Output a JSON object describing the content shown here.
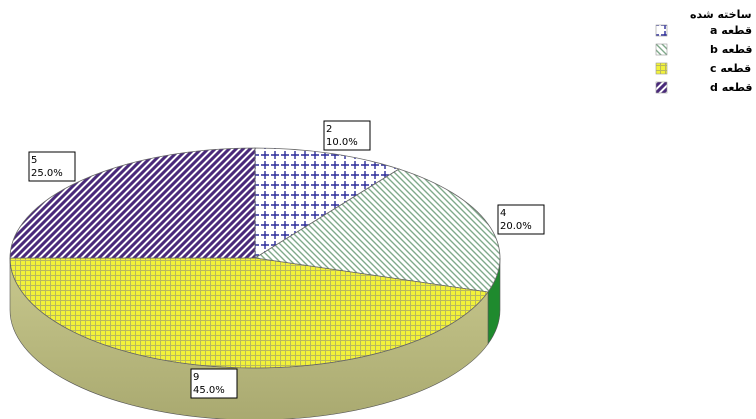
{
  "chart_data": {
    "type": "pie",
    "style": "3d-pie",
    "legend_title": "قطعه ساخته شده",
    "legend_placement": "top-right",
    "slices": [
      {
        "label": "قطعه a",
        "count_label": "2",
        "percent_label": "10.0%",
        "value": 2,
        "percent": 10.0,
        "pattern": "cross-dots",
        "color": "#2b2b9a"
      },
      {
        "label": "قطعه b",
        "count_label": "4",
        "percent_label": "20.0%",
        "value": 4,
        "percent": 20.0,
        "pattern": "hatch-back",
        "color": "#3a9a4a"
      },
      {
        "label": "قطعه c",
        "count_label": "9",
        "percent_label": "45.0%",
        "value": 9,
        "percent": 45.0,
        "pattern": "grid",
        "color": "#e8e84a"
      },
      {
        "label": "قطعه d",
        "count_label": "5",
        "percent_label": "25.0%",
        "value": 5,
        "percent": 25.0,
        "pattern": "hatch-forward",
        "color": "#4a2a7a"
      }
    ]
  }
}
